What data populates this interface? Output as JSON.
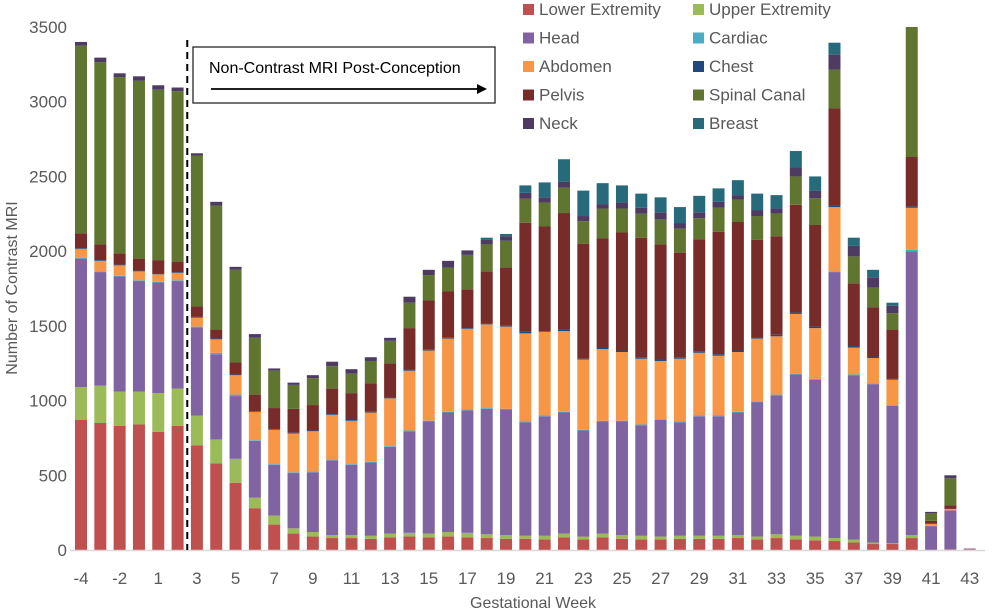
{
  "chart_data": {
    "type": "bar",
    "stacked": true,
    "title": "",
    "xlabel": "Gestational Week",
    "ylabel": "Number of Contrast MRI",
    "ylim": [
      0,
      3500
    ],
    "yticks": [
      0,
      500,
      1000,
      1500,
      2000,
      2500,
      3000,
      3500
    ],
    "grid": false,
    "legend_position": "top-right",
    "categories": [
      "-4",
      "-3",
      "-2",
      "-1",
      "1",
      "2",
      "3",
      "4",
      "5",
      "6",
      "7",
      "8",
      "9",
      "10",
      "11",
      "12",
      "13",
      "14",
      "15",
      "16",
      "17",
      "18",
      "19",
      "20",
      "21",
      "22",
      "23",
      "24",
      "25",
      "26",
      "27",
      "28",
      "29",
      "30",
      "31",
      "32",
      "33",
      "34",
      "35",
      "36",
      "37",
      "38",
      "39",
      "40",
      "41",
      "42",
      "43"
    ],
    "xtick_labels": [
      "-4",
      "-2",
      "1",
      "3",
      "5",
      "7",
      "9",
      "11",
      "13",
      "15",
      "17",
      "19",
      "21",
      "23",
      "25",
      "27",
      "29",
      "31",
      "33",
      "35",
      "37",
      "39",
      "41",
      "43"
    ],
    "annotation": {
      "text": "Non-Contrast MRI Post-Conception",
      "divider_after_category": "2",
      "arrow": "right"
    },
    "series": [
      {
        "name": "Lower Extremity",
        "color": "#C0504D",
        "values": [
          870,
          850,
          830,
          840,
          790,
          830,
          700,
          580,
          450,
          280,
          170,
          110,
          90,
          80,
          80,
          75,
          85,
          90,
          85,
          90,
          85,
          80,
          75,
          75,
          70,
          85,
          70,
          85,
          75,
          70,
          70,
          75,
          75,
          75,
          80,
          70,
          80,
          70,
          65,
          60,
          50,
          40,
          40,
          80,
          0,
          5,
          5
        ]
      },
      {
        "name": "Upper Extremity",
        "color": "#9BBB59",
        "values": [
          220,
          250,
          230,
          220,
          260,
          250,
          200,
          160,
          160,
          70,
          60,
          35,
          30,
          20,
          20,
          20,
          25,
          25,
          25,
          30,
          30,
          25,
          25,
          20,
          25,
          25,
          20,
          25,
          25,
          25,
          20,
          20,
          20,
          20,
          20,
          20,
          25,
          25,
          25,
          20,
          20,
          10,
          5,
          20,
          0,
          0,
          0
        ]
      },
      {
        "name": "Head",
        "color": "#8064A2",
        "values": [
          860,
          760,
          770,
          740,
          740,
          720,
          590,
          570,
          420,
          380,
          340,
          370,
          400,
          500,
          470,
          490,
          580,
          680,
          750,
          800,
          820,
          840,
          840,
          760,
          800,
          810,
          710,
          750,
          760,
          740,
          780,
          760,
          800,
          800,
          820,
          900,
          930,
          1080,
          1050,
          1780,
          1100,
          1060,
          920,
          1900,
          160,
          260,
          5
        ]
      },
      {
        "name": "Cardiac",
        "color": "#4BACC6",
        "values": [
          5,
          5,
          5,
          5,
          5,
          5,
          5,
          10,
          10,
          5,
          5,
          5,
          5,
          5,
          5,
          5,
          5,
          5,
          5,
          5,
          5,
          5,
          5,
          5,
          5,
          5,
          5,
          5,
          5,
          5,
          5,
          5,
          5,
          5,
          5,
          5,
          5,
          5,
          5,
          5,
          5,
          5,
          5,
          10,
          0,
          0,
          0
        ]
      },
      {
        "name": "Abdomen",
        "color": "#F79646",
        "values": [
          60,
          70,
          70,
          60,
          50,
          50,
          60,
          90,
          130,
          190,
          230,
          260,
          270,
          300,
          290,
          330,
          320,
          400,
          470,
          490,
          540,
          560,
          550,
          590,
          560,
          540,
          470,
          480,
          460,
          440,
          390,
          420,
          420,
          400,
          400,
          420,
          390,
          400,
          340,
          430,
          180,
          170,
          170,
          280,
          15,
          10,
          0
        ]
      },
      {
        "name": "Chest",
        "color": "#1F497D",
        "values": [
          5,
          5,
          5,
          5,
          5,
          5,
          5,
          5,
          5,
          5,
          5,
          5,
          5,
          5,
          5,
          5,
          5,
          5,
          5,
          5,
          5,
          5,
          5,
          10,
          5,
          10,
          5,
          10,
          10,
          10,
          10,
          10,
          10,
          10,
          10,
          10,
          10,
          10,
          10,
          10,
          10,
          10,
          5,
          10,
          0,
          0,
          0
        ]
      },
      {
        "name": "Pelvis",
        "color": "#772C2A",
        "values": [
          100,
          105,
          75,
          80,
          90,
          70,
          70,
          60,
          80,
          110,
          140,
          160,
          170,
          170,
          180,
          190,
          230,
          280,
          330,
          310,
          260,
          350,
          390,
          730,
          700,
          780,
          770,
          730,
          790,
          800,
          770,
          700,
          750,
          820,
          860,
          650,
          660,
          720,
          680,
          650,
          420,
          330,
          330,
          330,
          20,
          25,
          0
        ]
      },
      {
        "name": "Spinal Canal",
        "color": "#5F7530",
        "values": [
          1255,
          1220,
          1180,
          1190,
          1140,
          1140,
          1010,
          830,
          620,
          380,
          250,
          160,
          180,
          150,
          130,
          150,
          150,
          170,
          170,
          160,
          230,
          180,
          180,
          160,
          160,
          170,
          150,
          200,
          160,
          160,
          170,
          160,
          140,
          160,
          150,
          160,
          150,
          190,
          180,
          260,
          180,
          130,
          110,
          870,
          50,
          180,
          0
        ]
      },
      {
        "name": "Neck",
        "color": "#4D3B62",
        "values": [
          25,
          30,
          25,
          30,
          30,
          25,
          15,
          25,
          20,
          25,
          15,
          15,
          20,
          30,
          30,
          25,
          20,
          40,
          35,
          45,
          30,
          35,
          30,
          40,
          35,
          40,
          35,
          30,
          40,
          40,
          45,
          35,
          40,
          40,
          30,
          40,
          35,
          60,
          50,
          100,
          70,
          70,
          50,
          0,
          10,
          20,
          0
        ]
      },
      {
        "name": "Breast",
        "color": "#276A7C",
        "values": [
          0,
          0,
          0,
          0,
          0,
          0,
          0,
          0,
          0,
          0,
          0,
          0,
          0,
          0,
          0,
          0,
          0,
          0,
          0,
          0,
          0,
          10,
          15,
          50,
          100,
          150,
          170,
          140,
          115,
          95,
          100,
          110,
          110,
          90,
          100,
          110,
          90,
          110,
          95,
          80,
          55,
          50,
          20,
          0,
          0,
          0,
          0
        ]
      }
    ],
    "legend_order": [
      "Lower Extremity",
      "Upper Extremity",
      "Head",
      "Cardiac",
      "Abdomen",
      "Chest",
      "Pelvis",
      "Spinal Canal",
      "Neck",
      "Breast"
    ]
  }
}
